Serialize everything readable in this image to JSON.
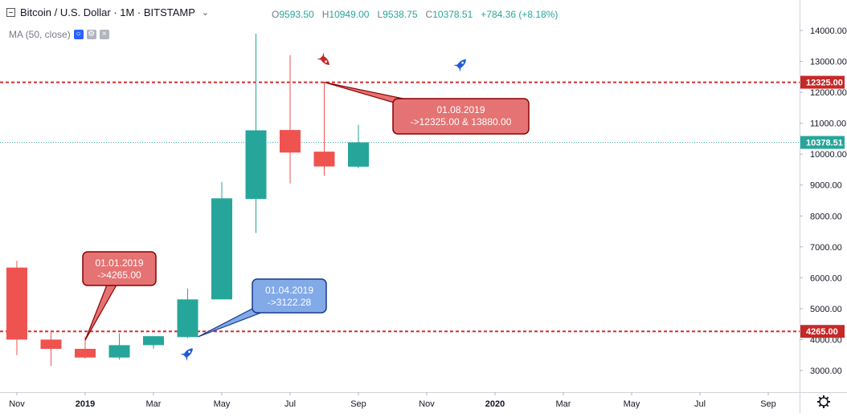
{
  "header": {
    "symbol": "Bitcoin / U.S. Dollar · 1M · BITSTAMP",
    "ohlc": [
      {
        "k": "O",
        "v": "9593.50"
      },
      {
        "k": "H",
        "v": "10949.00"
      },
      {
        "k": "L",
        "v": "9538.75"
      },
      {
        "k": "C",
        "v": "10378.51"
      },
      {
        "k": "",
        "v": "+784.36 (+8.18%)"
      }
    ],
    "indicator": "MA (50, close)"
  },
  "colors": {
    "up": "#26a69a",
    "down": "#ef5350",
    "level_line": "#d32f2f",
    "price_line": "#26a69a",
    "callout_red": "#e57373",
    "callout_blue": "#82a9e8"
  },
  "chart_data": {
    "type": "candlestick",
    "interval": "1M",
    "ylim": [
      2500,
      14500
    ],
    "yticks": [
      3000,
      4000,
      5000,
      6000,
      7000,
      8000,
      9000,
      10000,
      11000,
      12000,
      13000,
      14000
    ],
    "ytick_labels": [
      "3000.00",
      "4000.00",
      "5000.00",
      "6000.00",
      "7000.00",
      "8000.00",
      "9000.00",
      "10000.00",
      "11000.00",
      "12000.00",
      "13000.00",
      "14000.00"
    ],
    "xtick_labels": [
      "Nov",
      "2019",
      "Mar",
      "May",
      "Jul",
      "Sep",
      "Nov",
      "2020",
      "Mar",
      "May",
      "Jul",
      "Sep"
    ],
    "xtick_month_index": [
      0,
      2,
      4,
      6,
      8,
      10,
      12,
      14,
      16,
      18,
      20,
      22
    ],
    "candles": [
      {
        "m": 0,
        "o": 6330,
        "h": 6550,
        "l": 3500,
        "c": 4000
      },
      {
        "m": 1,
        "o": 4000,
        "h": 4300,
        "l": 3150,
        "c": 3700
      },
      {
        "m": 2,
        "o": 3700,
        "h": 4100,
        "l": 3380,
        "c": 3420
      },
      {
        "m": 3,
        "o": 3420,
        "h": 4200,
        "l": 3350,
        "c": 3820
      },
      {
        "m": 4,
        "o": 3820,
        "h": 4050,
        "l": 3700,
        "c": 4110
      },
      {
        "m": 5,
        "o": 4080,
        "h": 5650,
        "l": 4050,
        "c": 5300
      },
      {
        "m": 6,
        "o": 5300,
        "h": 9100,
        "l": 5300,
        "c": 8570
      },
      {
        "m": 7,
        "o": 8550,
        "h": 13900,
        "l": 7450,
        "c": 10770
      },
      {
        "m": 8,
        "o": 10780,
        "h": 13200,
        "l": 9050,
        "c": 10050
      },
      {
        "m": 9,
        "o": 10080,
        "h": 12325,
        "l": 9300,
        "c": 9600
      },
      {
        "m": 10,
        "o": 9593.5,
        "h": 10949,
        "l": 9538.75,
        "c": 10378.51
      }
    ],
    "levels": [
      {
        "value": 12325,
        "label": "12325.00"
      },
      {
        "value": 4265,
        "label": "4265.00"
      }
    ],
    "last_price": {
      "value": 10378.51,
      "label": "10378.51"
    },
    "annotations": [
      {
        "line1": "01.08.2019",
        "line2": "->12325.00 & 13880.00",
        "style": "red",
        "target_m": 9,
        "target_v": 12325
      },
      {
        "line1": "01.01.2019",
        "line2": "->4265.00",
        "style": "red",
        "target_m": 2,
        "target_v": 3980
      },
      {
        "line1": "01.04.2019",
        "line2": "->3122.28",
        "style": "blue",
        "target_m": 5,
        "target_v": 4090
      }
    ],
    "markers": [
      {
        "m": 9,
        "v": 13050,
        "kind": "rocket-down"
      },
      {
        "m": 13,
        "v": 12900,
        "kind": "rocket-up"
      },
      {
        "m": 5,
        "v": 3550,
        "kind": "rocket-up"
      }
    ]
  }
}
